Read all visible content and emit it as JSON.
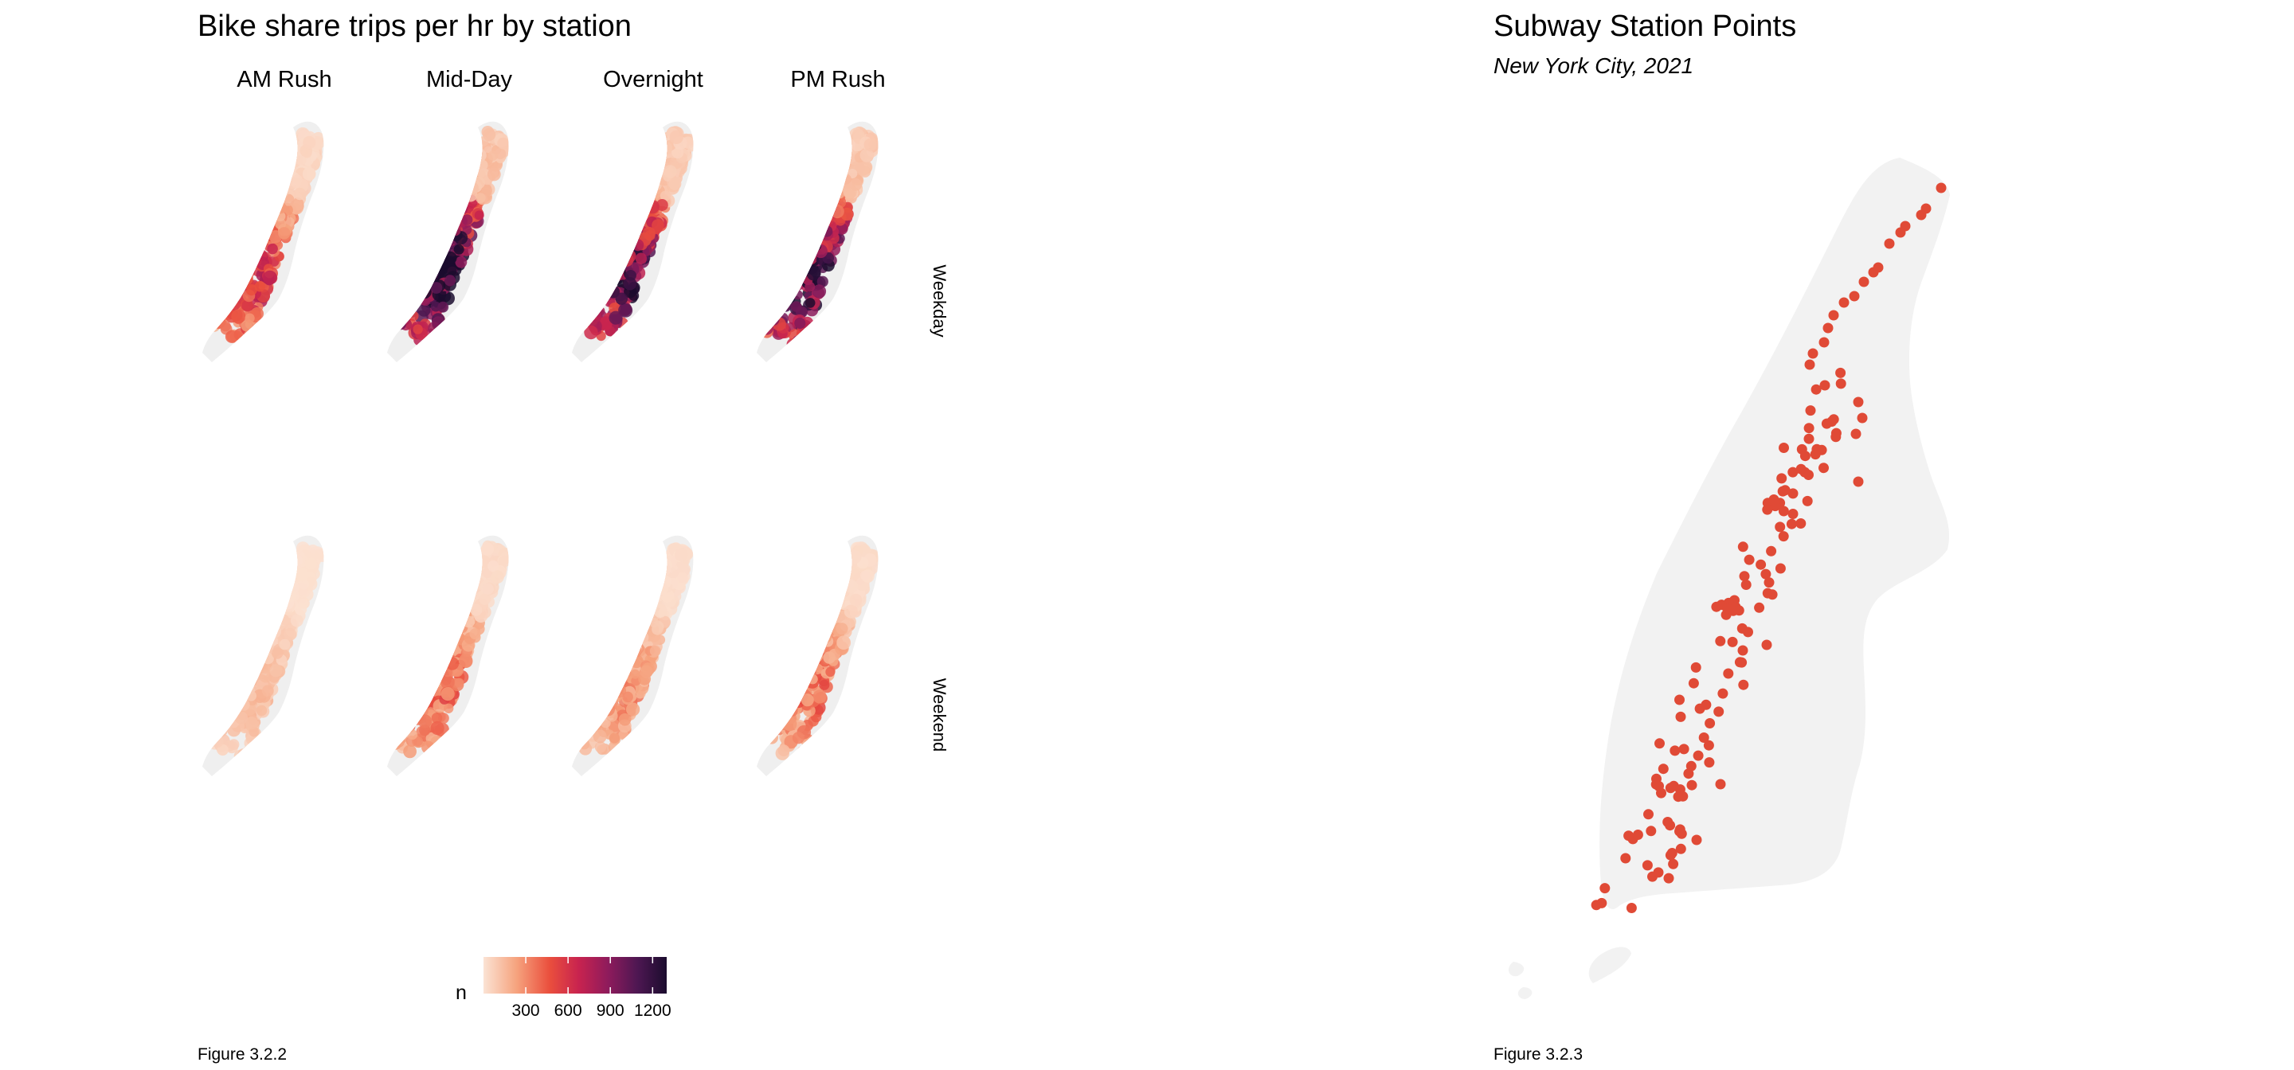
{
  "left_figure": {
    "title": "Bike share trips per hr by station",
    "columns": [
      "AM Rush",
      "Mid-Day",
      "Overnight",
      "PM Rush"
    ],
    "rows": [
      "Weekday",
      "Weekend"
    ],
    "legend": {
      "title": "n",
      "ticks": [
        "300",
        "600",
        "900",
        "1200"
      ],
      "tick_values": [
        300,
        600,
        900,
        1200
      ],
      "min": 0,
      "max": 1300,
      "colors": [
        "#fbe3d4",
        "#f6a37e",
        "#ea4f3d",
        "#c8234f",
        "#8e1b5c",
        "#4e1752",
        "#1b0c2e"
      ]
    },
    "intensity": {
      "Weekday": [
        0.26,
        0.62,
        0.47,
        0.56
      ],
      "Weekend": [
        0.06,
        0.18,
        0.12,
        0.16
      ]
    },
    "land_color": "#efefef",
    "caption": "Figure 3.2.2"
  },
  "right_figure": {
    "title": "Subway Station Points",
    "subtitle": "New York City, 2021",
    "point_color": "#e04a36",
    "land_color": "#f2f2f2",
    "caption": "Figure 3.2.3"
  }
}
